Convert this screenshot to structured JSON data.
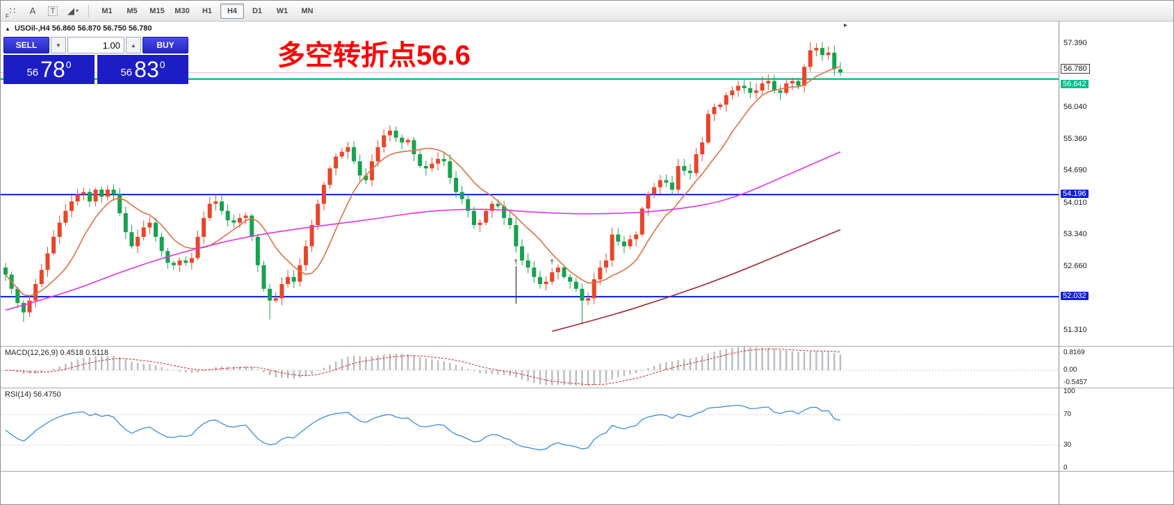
{
  "toolbar": {
    "icons": [
      {
        "name": "grid-dots-icon",
        "glyph": "∷",
        "sub": "F"
      },
      {
        "name": "text-annotation-icon",
        "glyph": "A"
      },
      {
        "name": "text-label-icon",
        "glyph": "T"
      },
      {
        "name": "shapes-dropdown-icon",
        "glyph": "◢",
        "caret": "▾"
      }
    ],
    "timeframes": [
      "M1",
      "M5",
      "M15",
      "M30",
      "H1",
      "H4",
      "D1",
      "W1",
      "MN"
    ],
    "selected": "H4"
  },
  "chart_header": {
    "marker": "▲",
    "symbol": "USOil-,H4",
    "ohlc": "56.860 56.870 56.750 56.780",
    "shift_marker": "▸"
  },
  "annotation": {
    "text": "多空转折点56.6",
    "color": "#ff0000"
  },
  "trade_panel": {
    "sell_label": "SELL",
    "buy_label": "BUY",
    "volume": "1.00",
    "spin_down": "▼",
    "spin_up": "▲",
    "sell_price": {
      "prefix": "56",
      "big": "78",
      "sup": "0"
    },
    "buy_price": {
      "prefix": "56",
      "big": "83",
      "sup": "0"
    }
  },
  "macd_panel": {
    "header": "MACD(12,26,9) 0.4518 0.5118",
    "axis_labels": [
      "0.8169",
      "0.00",
      "-0.5457"
    ]
  },
  "rsi_panel": {
    "header": "RSI(14) 56.4750",
    "axis_labels": [
      "100",
      "70",
      "30",
      "0"
    ]
  },
  "chart_data": {
    "type": "candlestick",
    "title": "USOil-,H4",
    "price_axis_range": [
      50.99,
      57.86
    ],
    "candle_step": 8.64,
    "up_color": "#e8452a",
    "down_color": "#17a24e",
    "first_open": 52.65,
    "closes": [
      52.5,
      52.2,
      51.9,
      51.7,
      51.95,
      52.3,
      52.6,
      52.95,
      53.3,
      53.6,
      53.85,
      54.05,
      54.2,
      54.25,
      54.05,
      54.3,
      54.15,
      54.3,
      54.2,
      53.8,
      53.4,
      53.1,
      53.3,
      53.5,
      53.6,
      53.3,
      53.0,
      52.75,
      52.7,
      52.8,
      52.75,
      52.85,
      53.3,
      53.7,
      54.0,
      54.05,
      53.85,
      53.65,
      53.6,
      53.7,
      53.75,
      53.3,
      52.7,
      52.2,
      51.95,
      52.0,
      52.3,
      52.45,
      52.35,
      52.7,
      53.1,
      53.55,
      54.0,
      54.4,
      54.75,
      55.0,
      55.1,
      55.2,
      54.9,
      54.6,
      54.5,
      54.9,
      55.2,
      55.45,
      55.55,
      55.4,
      55.3,
      55.35,
      55.05,
      54.8,
      54.75,
      54.85,
      54.95,
      54.9,
      54.55,
      54.25,
      54.1,
      53.85,
      53.55,
      53.6,
      53.85,
      54.0,
      53.95,
      53.7,
      53.55,
      53.1,
      52.8,
      52.65,
      52.45,
      52.3,
      52.35,
      52.55,
      52.65,
      52.45,
      52.35,
      52.2,
      51.95,
      52.0,
      52.4,
      52.65,
      52.8,
      53.35,
      53.2,
      53.1,
      53.25,
      53.35,
      53.9,
      54.2,
      54.35,
      54.5,
      54.45,
      54.3,
      54.8,
      54.7,
      54.65,
      55.05,
      55.3,
      55.9,
      56.05,
      56.1,
      56.3,
      56.4,
      56.5,
      56.45,
      56.35,
      56.4,
      56.55,
      56.6,
      56.4,
      56.35,
      56.55,
      56.6,
      56.5,
      56.9,
      57.25,
      57.3,
      57.15,
      57.2,
      56.85,
      56.78
    ],
    "wick_overrides": {
      "3": {
        "low": 51.5
      },
      "44": {
        "low": 51.55
      },
      "96": {
        "low": 51.45
      },
      "134": {
        "high": 57.42
      },
      "135": {
        "high": 57.4
      }
    },
    "levels": [
      {
        "price": 56.642,
        "color": "#00c98d",
        "width": 2.5,
        "label": "56.642",
        "label_bg": "green",
        "label_offset": 8,
        "name": "green-level"
      },
      {
        "price": 54.196,
        "color": "#0020dd",
        "width": 2,
        "label": "54.196",
        "label_bg": "blue",
        "label_offset": 0,
        "name": "blue-level-upper"
      },
      {
        "price": 52.032,
        "color": "#0020dd",
        "width": 2,
        "label": "52.032",
        "label_bg": "blue",
        "label_offset": 0,
        "name": "blue-level-lower"
      }
    ],
    "current_price": {
      "price": 56.78,
      "label": "56.780"
    },
    "price_ticks": [
      57.39,
      56.04,
      55.36,
      54.69,
      54.01,
      53.34,
      52.66,
      51.31
    ],
    "ma_fast": {
      "window": 10,
      "color": "#dd7043"
    },
    "ma_magenta": {
      "color": "#e432e4",
      "anchors": [
        [
          0,
          51.75
        ],
        [
          10,
          52.1
        ],
        [
          20,
          52.6
        ],
        [
          30,
          53.0
        ],
        [
          40,
          53.3
        ],
        [
          50,
          53.5
        ],
        [
          60,
          53.65
        ],
        [
          70,
          53.85
        ],
        [
          80,
          53.9
        ],
        [
          90,
          53.8
        ],
        [
          100,
          53.78
        ],
        [
          110,
          53.85
        ],
        [
          120,
          54.05
        ],
        [
          130,
          54.6
        ],
        [
          139,
          55.1
        ]
      ]
    },
    "ma_slow_dark": {
      "color": "#a1262e",
      "anchors": [
        [
          91,
          51.3
        ],
        [
          100,
          51.6
        ],
        [
          110,
          52.0
        ],
        [
          120,
          52.45
        ],
        [
          130,
          52.98
        ],
        [
          139,
          53.45
        ]
      ]
    },
    "macd": {
      "params": "12,26,9",
      "bar_color": "#b8bcc0",
      "signal_color": "#d42020",
      "range": [
        -0.7,
        0.95
      ]
    },
    "rsi": {
      "period": 14,
      "color": "#3c8ddc",
      "levels": [
        70,
        30
      ],
      "current": 56.475
    },
    "objects": {
      "vline": {
        "index": 85,
        "from": 52.68,
        "to": 51.88
      },
      "crosses": [
        {
          "index": 85,
          "price": 52.72
        },
        {
          "index": 91,
          "price": 52.72
        }
      ]
    }
  }
}
